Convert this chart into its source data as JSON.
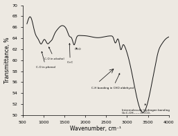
{
  "title": "",
  "xlabel": "Wavenumber, cm⁻¹",
  "ylabel": "Transmittance, %",
  "xlim": [
    600,
    4000
  ],
  "ylim": [
    50,
    70
  ],
  "yticks": [
    50,
    52,
    54,
    56,
    58,
    60,
    62,
    64,
    66,
    68,
    70
  ],
  "xticks": [
    500,
    1000,
    1500,
    2000,
    2500,
    3000,
    3500,
    4000
  ],
  "bg_color": "#ede9e2",
  "line_color": "#111111",
  "ann_fontsize": 3.0,
  "tick_fontsize": 4.5,
  "label_fontsize": 5.5
}
